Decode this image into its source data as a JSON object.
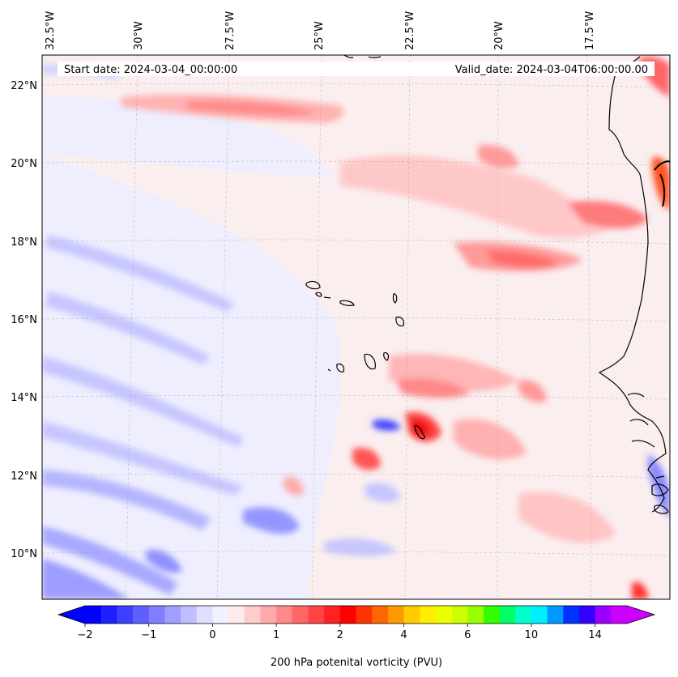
{
  "map": {
    "lon_labels": [
      "32.5°W",
      "30°W",
      "27.5°W",
      "25°W",
      "22.5°W",
      "20°W",
      "17.5°W"
    ],
    "lat_labels": [
      "22°N",
      "20°N",
      "18°N",
      "16°N",
      "14°N",
      "12°N",
      "10°N"
    ],
    "start_label": "Start date: 2024-03-04_00:00:00",
    "valid_label": "Valid_date: 2024-03-04T06:00:00.00",
    "field": "200 hPa potenital vorticity (PVU)"
  },
  "colorbar": {
    "label": "200 hPa potenital vorticity (PVU)",
    "tick_labels": [
      "−2",
      "−1",
      "0",
      "1",
      "2",
      "4",
      "6",
      "10",
      "14"
    ],
    "levels": [
      -2,
      -1.75,
      -1.5,
      -1.25,
      -1,
      -0.75,
      -0.5,
      -0.25,
      0,
      0.25,
      0.5,
      0.75,
      1,
      1.25,
      1.5,
      1.75,
      2,
      2.5,
      3,
      3.5,
      4,
      4.5,
      5,
      5.5,
      6,
      7,
      8,
      9,
      10,
      11,
      12,
      13,
      14,
      15
    ],
    "colors": [
      "#0000ff",
      "#1f1fff",
      "#3f3fff",
      "#5f5fff",
      "#7f7fff",
      "#9f9fff",
      "#bfbfff",
      "#dfdfff",
      "#f2f2ff",
      "#ffeaea",
      "#ffcccc",
      "#ffaaaa",
      "#ff8888",
      "#ff6666",
      "#ff4444",
      "#ff2222",
      "#ff0000",
      "#ff3300",
      "#ff6600",
      "#ff9900",
      "#ffcc00",
      "#ffee00",
      "#eeff00",
      "#ccff00",
      "#99ff00",
      "#33ff00",
      "#00ff66",
      "#00ffcc",
      "#00eeff",
      "#0099ff",
      "#0033ff",
      "#3300ff",
      "#9900ff",
      "#cc00ff"
    ],
    "under_color": "#0000ff",
    "over_color": "#cc00ff"
  }
}
